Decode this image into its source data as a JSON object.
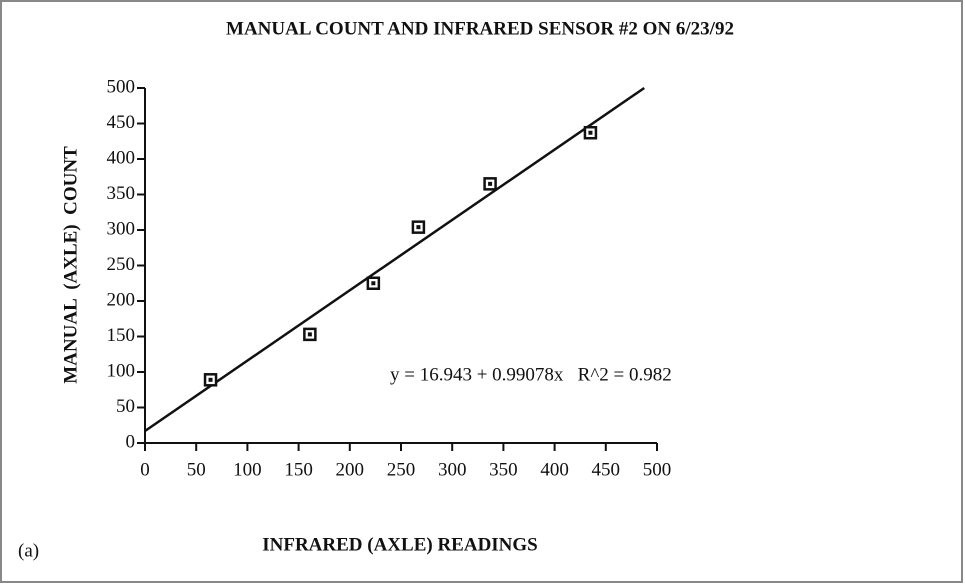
{
  "chart_data": {
    "type": "scatter",
    "title": "MANUAL COUNT AND INFRARED SENSOR #2 ON 6/23/92",
    "x_label": "INFRARED (AXLE) READINGS",
    "y_label": "MANUAL  (AXLE)  COUNT",
    "annotation": "y = 16.943 + 0.99078x   R^2 = 0.982",
    "panel_label": "(a)",
    "x": [
      64,
      161,
      223,
      267,
      337,
      435
    ],
    "values": [
      89,
      153,
      225,
      304,
      365,
      437
    ],
    "color": "#111111",
    "fit": {
      "intercept": 16.943,
      "slope": 0.99078
    },
    "xlim": [
      0,
      500
    ],
    "xticks": [
      0,
      50,
      100,
      150,
      200,
      250,
      300,
      350,
      400,
      450,
      500
    ],
    "ylim": [
      0,
      500
    ],
    "yticks": [
      0,
      50,
      100,
      150,
      200,
      250,
      300,
      350,
      400,
      450,
      500
    ],
    "grid": false
  }
}
